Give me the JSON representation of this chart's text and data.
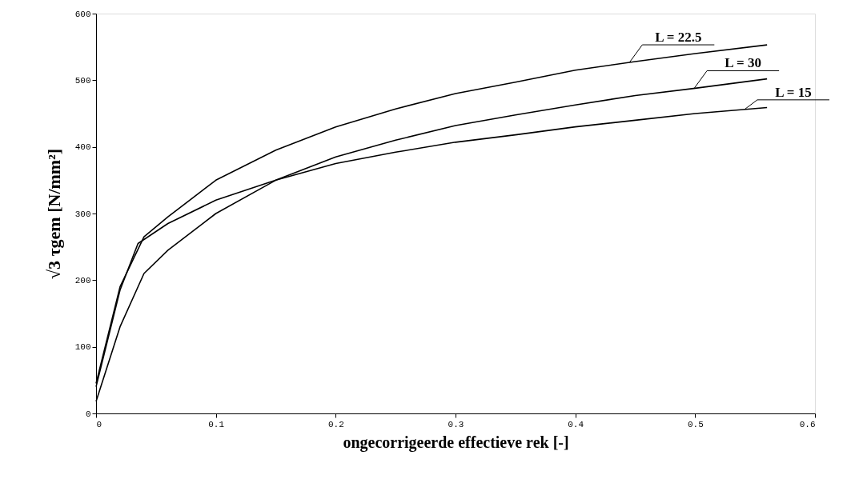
{
  "chart_data": {
    "type": "line",
    "xlabel": "ongecorrigeerde effectieve rek [-]",
    "ylabel": "√3 τgem [N/mm²]",
    "x": [
      0,
      0.02,
      0.04,
      0.06,
      0.1,
      0.15,
      0.2,
      0.25,
      0.3,
      0.35,
      0.4,
      0.45,
      0.5,
      0.56
    ],
    "series": [
      {
        "name": "L = 22.5",
        "color": "#000000",
        "values": [
          45,
          190,
          265,
          295,
          350,
          395,
          430,
          457,
          480,
          497,
          515,
          528,
          540,
          553
        ]
      },
      {
        "name": "L = 30",
        "color": "#000000",
        "values": [
          18,
          130,
          210,
          245,
          300,
          350,
          385,
          410,
          432,
          448,
          463,
          477,
          488,
          502
        ]
      },
      {
        "name": "L = 15",
        "color": "#000000",
        "x": [
          0,
          0.02,
          0.035,
          0.06,
          0.1,
          0.15,
          0.2,
          0.25,
          0.3,
          0.35,
          0.4,
          0.45,
          0.5,
          0.56
        ],
        "values": [
          40,
          185,
          255,
          285,
          320,
          350,
          375,
          392,
          407,
          418,
          430,
          440,
          450,
          459
        ]
      }
    ],
    "xlim": [
      0,
      0.6
    ],
    "ylim": [
      0,
      600
    ],
    "xticks": [
      0,
      {
        "value": 0.1,
        "label": "0.1"
      },
      {
        "value": 0.2,
        "label": "0.2"
      },
      {
        "value": 0.3,
        "label": "0.3"
      },
      {
        "value": 0.4,
        "label": "0.4"
      },
      {
        "value": 0.5,
        "label": "0.5"
      },
      {
        "value": 0.6,
        "label": "0.6"
      }
    ],
    "yticks": [
      0,
      100,
      200,
      300,
      400,
      500,
      600
    ],
    "grid": false,
    "marker": "none",
    "line_style": "solid"
  }
}
